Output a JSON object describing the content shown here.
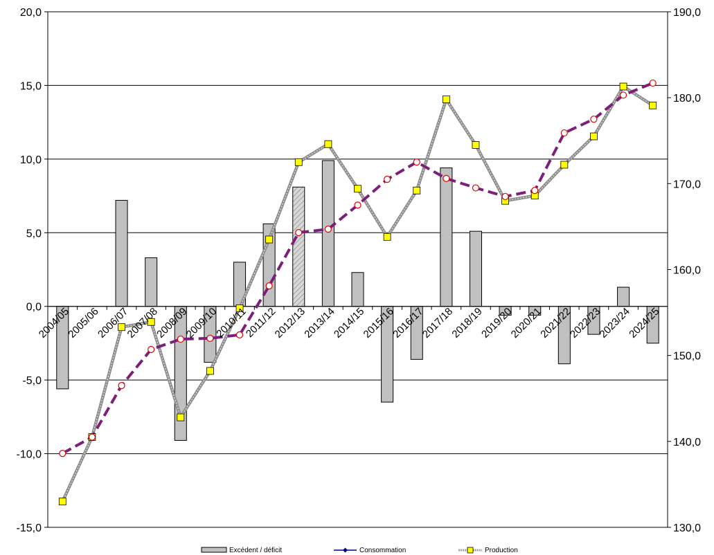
{
  "chart_data": {
    "type": "bar",
    "categories": [
      "2004/05",
      "2005/06",
      "2006/07",
      "2007/08",
      "2008/09",
      "2009/10",
      "2010/11",
      "2011/12",
      "2012/13",
      "2013/14",
      "2014/15",
      "2015/16",
      "2016/17",
      "2017/18",
      "2018/19",
      "2019/20",
      "2020/21",
      "2021/22",
      "2022/23",
      "2023/24",
      "2024/25"
    ],
    "y_left": {
      "ylim": [
        -15,
        20
      ],
      "ticks": [
        "20,0",
        "15,0",
        "10,0",
        "5,0",
        "0,0",
        "-5,0",
        "-10,0",
        "-15,0"
      ]
    },
    "y_right": {
      "ylim": [
        130,
        190
      ],
      "ticks": [
        "190,0",
        "180,0",
        "170,0",
        "160,0",
        "150,0",
        "140,0",
        "130,0"
      ]
    },
    "series": [
      {
        "name": "Excédent / déficit",
        "kind": "bar",
        "axis": "left",
        "color": "#c0c0c0",
        "hatched_index": 8,
        "values": [
          -5.6,
          0,
          7.2,
          3.3,
          -9.1,
          -3.8,
          3.0,
          5.6,
          8.1,
          9.9,
          2.3,
          -6.5,
          -3.6,
          9.4,
          5.1,
          -0.6,
          -0.6,
          -3.9,
          -1.9,
          1.3,
          -2.5
        ]
      },
      {
        "name": "Consommation",
        "kind": "line",
        "axis": "right",
        "color": "#7b1f7b",
        "values": [
          138.6,
          140.5,
          146.5,
          150.7,
          151.9,
          152.0,
          152.4,
          158.1,
          164.3,
          164.7,
          167.5,
          170.5,
          172.5,
          170.6,
          169.5,
          168.5,
          169.2,
          175.9,
          177.5,
          180.3,
          181.7
        ]
      },
      {
        "name": "Production",
        "kind": "line",
        "axis": "right",
        "color": "#808080",
        "marker_color": "#ffff00",
        "values": [
          133.0,
          140.5,
          153.3,
          153.9,
          142.8,
          148.2,
          155.5,
          163.5,
          172.5,
          174.6,
          169.4,
          163.8,
          169.2,
          179.8,
          174.5,
          168.0,
          168.6,
          172.2,
          175.5,
          181.3,
          179.1
        ]
      }
    ],
    "legend_position": "bottom",
    "grid": true
  }
}
